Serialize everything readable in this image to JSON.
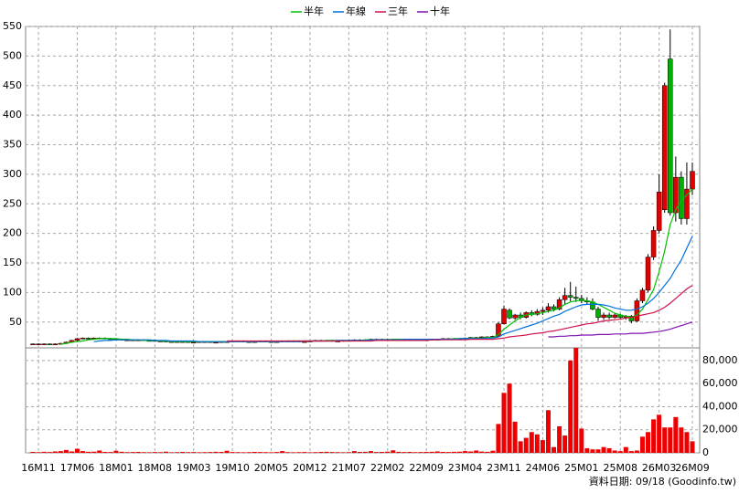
{
  "chart_data": {
    "type": "candlestick",
    "categories": [
      null,
      "16M11",
      null,
      null,
      null,
      null,
      null,
      null,
      "17M06",
      null,
      null,
      null,
      null,
      null,
      null,
      "18M01",
      null,
      null,
      null,
      null,
      null,
      null,
      "18M08",
      null,
      null,
      null,
      null,
      null,
      null,
      "19M03",
      null,
      null,
      null,
      null,
      null,
      null,
      "19M10",
      null,
      null,
      null,
      null,
      null,
      null,
      "20M05",
      null,
      null,
      null,
      null,
      null,
      null,
      "20M12",
      null,
      null,
      null,
      null,
      null,
      null,
      "21M07",
      null,
      null,
      null,
      null,
      null,
      null,
      "22M02",
      null,
      null,
      null,
      null,
      null,
      null,
      "22M09",
      null,
      null,
      null,
      null,
      null,
      null,
      "23M04",
      null,
      null,
      null,
      null,
      null,
      null,
      "23M11",
      null,
      null,
      null,
      null,
      null,
      null,
      "24M06",
      null,
      null,
      null,
      null,
      null,
      null,
      "25M01",
      null,
      null,
      null,
      null,
      null,
      null,
      "25M08",
      null,
      null,
      null,
      null,
      null,
      null,
      "26M03",
      null,
      null,
      null,
      null,
      null,
      "26M09"
    ],
    "ohlc": [
      [
        12,
        14,
        11,
        13
      ],
      [
        13,
        14,
        12,
        13
      ],
      [
        13,
        14,
        12,
        13
      ],
      [
        13,
        14,
        11,
        12
      ],
      [
        12,
        14,
        11,
        13
      ],
      [
        13,
        15,
        12,
        14
      ],
      [
        14,
        17,
        13,
        16
      ],
      [
        16,
        20,
        15,
        19
      ],
      [
        19,
        23,
        18,
        22
      ],
      [
        22,
        24,
        21,
        23
      ],
      [
        23,
        24,
        21,
        22
      ],
      [
        22,
        24,
        21,
        23
      ],
      [
        23,
        24,
        22,
        23
      ],
      [
        23,
        24,
        21,
        22
      ],
      [
        22,
        23,
        20,
        21
      ],
      [
        21,
        22,
        20,
        21
      ],
      [
        21,
        22,
        19,
        20
      ],
      [
        20,
        21,
        19,
        20
      ],
      [
        20,
        21,
        18,
        19
      ],
      [
        19,
        21,
        18,
        20
      ],
      [
        20,
        21,
        18,
        19
      ],
      [
        19,
        20,
        18,
        19
      ],
      [
        19,
        20,
        17,
        18
      ],
      [
        18,
        19,
        17,
        18
      ],
      [
        18,
        19,
        16,
        17
      ],
      [
        17,
        18,
        16,
        17
      ],
      [
        17,
        18,
        16,
        17
      ],
      [
        17,
        18,
        16,
        17
      ],
      [
        17,
        18,
        15,
        16
      ],
      [
        16,
        17,
        15,
        16
      ],
      [
        16,
        18,
        15,
        17
      ],
      [
        17,
        18,
        16,
        17
      ],
      [
        17,
        18,
        15,
        16
      ],
      [
        16,
        17,
        15,
        16
      ],
      [
        16,
        18,
        15,
        17
      ],
      [
        17,
        18,
        16,
        17
      ],
      [
        17,
        19,
        16,
        18
      ],
      [
        18,
        19,
        17,
        18
      ],
      [
        18,
        19,
        16,
        17
      ],
      [
        17,
        18,
        15,
        16
      ],
      [
        16,
        18,
        15,
        17
      ],
      [
        17,
        19,
        16,
        18
      ],
      [
        18,
        19,
        16,
        17
      ],
      [
        17,
        18,
        15,
        16
      ],
      [
        16,
        18,
        15,
        17
      ],
      [
        17,
        19,
        16,
        18
      ],
      [
        18,
        19,
        17,
        18
      ],
      [
        18,
        19,
        17,
        18
      ],
      [
        18,
        19,
        16,
        17
      ],
      [
        17,
        18,
        16,
        17
      ],
      [
        17,
        19,
        16,
        18
      ],
      [
        18,
        20,
        17,
        19
      ],
      [
        19,
        20,
        18,
        19
      ],
      [
        19,
        20,
        18,
        19
      ],
      [
        19,
        20,
        17,
        18
      ],
      [
        18,
        19,
        17,
        18
      ],
      [
        18,
        20,
        17,
        19
      ],
      [
        19,
        20,
        18,
        19
      ],
      [
        19,
        21,
        18,
        20
      ],
      [
        20,
        21,
        18,
        19
      ],
      [
        19,
        21,
        18,
        20
      ],
      [
        20,
        22,
        19,
        21
      ],
      [
        21,
        22,
        19,
        20
      ],
      [
        20,
        22,
        19,
        21
      ],
      [
        21,
        22,
        20,
        21
      ],
      [
        21,
        22,
        19,
        20
      ],
      [
        20,
        21,
        19,
        20
      ],
      [
        20,
        22,
        19,
        21
      ],
      [
        21,
        22,
        20,
        21
      ],
      [
        21,
        22,
        20,
        21
      ],
      [
        21,
        22,
        19,
        20
      ],
      [
        20,
        21,
        19,
        20
      ],
      [
        20,
        22,
        19,
        21
      ],
      [
        21,
        22,
        20,
        21
      ],
      [
        21,
        23,
        20,
        22
      ],
      [
        22,
        23,
        21,
        22
      ],
      [
        22,
        23,
        21,
        22
      ],
      [
        22,
        23,
        21,
        22
      ],
      [
        22,
        24,
        21,
        23
      ],
      [
        23,
        25,
        22,
        24
      ],
      [
        24,
        25,
        23,
        24
      ],
      [
        24,
        26,
        23,
        25
      ],
      [
        25,
        26,
        23,
        24
      ],
      [
        24,
        27,
        23,
        26
      ],
      [
        26,
        50,
        25,
        47
      ],
      [
        47,
        78,
        46,
        72
      ],
      [
        70,
        73,
        55,
        57
      ],
      [
        57,
        64,
        54,
        62
      ],
      [
        62,
        66,
        55,
        58
      ],
      [
        58,
        68,
        56,
        66
      ],
      [
        66,
        70,
        60,
        63
      ],
      [
        63,
        72,
        61,
        68
      ],
      [
        68,
        75,
        62,
        70
      ],
      [
        70,
        82,
        66,
        76
      ],
      [
        76,
        80,
        68,
        72
      ],
      [
        72,
        92,
        70,
        88
      ],
      [
        88,
        108,
        80,
        95
      ],
      [
        95,
        118,
        85,
        92
      ],
      [
        92,
        110,
        84,
        90
      ],
      [
        90,
        96,
        82,
        86
      ],
      [
        86,
        92,
        80,
        84
      ],
      [
        84,
        90,
        70,
        72
      ],
      [
        72,
        76,
        52,
        58
      ],
      [
        58,
        66,
        54,
        62
      ],
      [
        62,
        66,
        55,
        58
      ],
      [
        58,
        65,
        56,
        62
      ],
      [
        62,
        64,
        56,
        58
      ],
      [
        58,
        62,
        54,
        60
      ],
      [
        60,
        62,
        48,
        52
      ],
      [
        52,
        90,
        50,
        86
      ],
      [
        86,
        108,
        82,
        104
      ],
      [
        104,
        165,
        100,
        160
      ],
      [
        160,
        212,
        155,
        205
      ],
      [
        205,
        300,
        200,
        270
      ],
      [
        240,
        455,
        235,
        450
      ],
      [
        495,
        545,
        230,
        235
      ],
      [
        235,
        330,
        220,
        295
      ],
      [
        295,
        305,
        215,
        225
      ],
      [
        225,
        320,
        215,
        275
      ],
      [
        275,
        320,
        265,
        305
      ]
    ],
    "up_color": "#e00000",
    "down_color": "#00b000",
    "ylim": [
      8,
      550
    ],
    "yticks": [
      50,
      100,
      150,
      200,
      250,
      300,
      350,
      400,
      450,
      500,
      550
    ],
    "grid": true,
    "series": [
      {
        "name": "半年",
        "color": "#00c000",
        "values": [
          null,
          null,
          null,
          null,
          null,
          13,
          14,
          16,
          17,
          18,
          20,
          21,
          22,
          22,
          22,
          22,
          21,
          21,
          20,
          20,
          19,
          19,
          19,
          18,
          18,
          17,
          17,
          17,
          17,
          17,
          17,
          17,
          17,
          17,
          17,
          17,
          17,
          17,
          17,
          17,
          17,
          17,
          17,
          17,
          17,
          17,
          18,
          18,
          18,
          18,
          18,
          18,
          18,
          19,
          19,
          19,
          19,
          19,
          19,
          19,
          20,
          20,
          20,
          20,
          20,
          21,
          21,
          21,
          21,
          21,
          21,
          21,
          21,
          21,
          21,
          21,
          22,
          22,
          22,
          23,
          23,
          23,
          24,
          24,
          29,
          38,
          45,
          52,
          58,
          62,
          63,
          64,
          66,
          68,
          70,
          74,
          80,
          84,
          86,
          87,
          86,
          84,
          80,
          75,
          70,
          65,
          62,
          60,
          58,
          62,
          72,
          88,
          105,
          135,
          170,
          215,
          240,
          255,
          265,
          275
        ]
      },
      {
        "name": "年線",
        "color": "#0070e0",
        "values": [
          null,
          null,
          null,
          null,
          null,
          null,
          null,
          null,
          null,
          null,
          null,
          17,
          18,
          19,
          19,
          20,
          20,
          20,
          20,
          20,
          20,
          20,
          19,
          19,
          19,
          18,
          18,
          18,
          18,
          18,
          17,
          17,
          17,
          17,
          17,
          17,
          17,
          17,
          17,
          17,
          17,
          17,
          17,
          17,
          17,
          17,
          17,
          17,
          17,
          18,
          18,
          18,
          18,
          18,
          18,
          19,
          19,
          19,
          19,
          19,
          19,
          20,
          20,
          20,
          20,
          20,
          20,
          21,
          21,
          21,
          21,
          21,
          21,
          21,
          21,
          21,
          21,
          22,
          22,
          22,
          22,
          22,
          23,
          23,
          25,
          30,
          33,
          36,
          39,
          42,
          45,
          48,
          52,
          56,
          60,
          63,
          68,
          72,
          76,
          79,
          80,
          80,
          80,
          79,
          77,
          74,
          72,
          70,
          70,
          72,
          76,
          82,
          90,
          100,
          112,
          124,
          140,
          155,
          175,
          195
        ]
      },
      {
        "name": "三年",
        "color": "#d0104a",
        "values": [
          null,
          null,
          null,
          null,
          null,
          null,
          null,
          null,
          null,
          null,
          null,
          null,
          null,
          null,
          null,
          null,
          null,
          null,
          null,
          null,
          null,
          null,
          null,
          null,
          null,
          null,
          null,
          null,
          null,
          null,
          null,
          null,
          null,
          null,
          null,
          18,
          18,
          18,
          18,
          18,
          18,
          18,
          18,
          18,
          18,
          18,
          18,
          18,
          18,
          18,
          18,
          18,
          18,
          18,
          18,
          18,
          18,
          18,
          18,
          18,
          18,
          18,
          19,
          19,
          19,
          19,
          19,
          19,
          19,
          19,
          19,
          19,
          20,
          20,
          20,
          20,
          20,
          20,
          20,
          21,
          21,
          21,
          21,
          21,
          22,
          23,
          25,
          26,
          27,
          28,
          30,
          31,
          32,
          34,
          35,
          37,
          39,
          41,
          43,
          45,
          47,
          48,
          50,
          52,
          53,
          54,
          55,
          57,
          58,
          60,
          62,
          64,
          66,
          70,
          75,
          82,
          90,
          98,
          106,
          112
        ]
      },
      {
        "name": "十年",
        "color": "#8010b0",
        "values": [
          null,
          null,
          null,
          null,
          null,
          null,
          null,
          null,
          null,
          null,
          null,
          null,
          null,
          null,
          null,
          null,
          null,
          null,
          null,
          null,
          null,
          null,
          null,
          null,
          null,
          null,
          null,
          null,
          null,
          null,
          null,
          null,
          null,
          null,
          null,
          null,
          null,
          null,
          null,
          null,
          null,
          null,
          null,
          null,
          null,
          null,
          null,
          null,
          null,
          null,
          null,
          null,
          null,
          null,
          null,
          null,
          null,
          null,
          null,
          null,
          null,
          null,
          null,
          null,
          null,
          null,
          null,
          null,
          null,
          null,
          null,
          null,
          null,
          null,
          null,
          null,
          null,
          null,
          null,
          null,
          null,
          null,
          null,
          null,
          null,
          null,
          null,
          null,
          null,
          null,
          null,
          null,
          null,
          25,
          25,
          26,
          26,
          27,
          27,
          28,
          28,
          28,
          29,
          29,
          29,
          30,
          30,
          30,
          31,
          31,
          31,
          32,
          33,
          34,
          36,
          38,
          41,
          44,
          47,
          50
        ]
      }
    ],
    "volume": {
      "color": "#ee0000",
      "values": [
        800,
        600,
        900,
        700,
        1200,
        1500,
        2500,
        1200,
        3500,
        1500,
        900,
        1000,
        2000,
        800,
        700,
        1800,
        900,
        600,
        700,
        800,
        600,
        500,
        700,
        600,
        1000,
        500,
        600,
        800,
        600,
        700,
        500,
        600,
        700,
        900,
        800,
        1800,
        700,
        600,
        500,
        600,
        800,
        700,
        600,
        500,
        700,
        1500,
        600,
        500,
        600,
        700,
        500,
        600,
        800,
        900,
        700,
        600,
        500,
        600,
        1500,
        800,
        900,
        1500,
        700,
        800,
        1000,
        2200,
        900,
        700,
        800,
        600,
        700,
        800,
        900,
        1200,
        800,
        700,
        900,
        1000,
        1500,
        1200,
        2000,
        1100,
        900,
        1800,
        25000,
        52000,
        60000,
        27000,
        10000,
        13000,
        18000,
        16000,
        11000,
        37000,
        5000,
        23000,
        15000,
        80000,
        91000,
        21000,
        4000,
        3000,
        3000,
        5000,
        4000,
        2000,
        1500,
        5000,
        1500,
        2000,
        14000,
        18000,
        29000,
        33000,
        22000,
        22000,
        31000,
        22000,
        18000,
        10000
      ],
      "ylim": [
        0,
        91000
      ],
      "yticks": [
        0,
        {
          "value": 20000,
          "label": "20,000"
        },
        {
          "value": 40000,
          "label": "40,000"
        },
        {
          "value": 60000,
          "label": "60,000"
        },
        {
          "value": 80000,
          "label": "80,000"
        }
      ]
    },
    "source": "資料日期: 09/18 (Goodinfo.tw)"
  }
}
